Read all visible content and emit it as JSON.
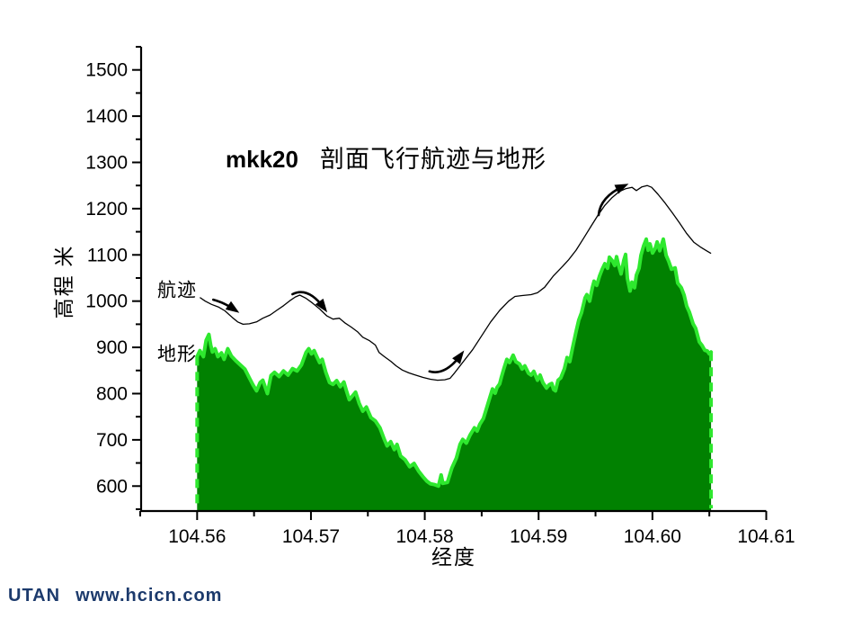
{
  "title": {
    "prefix": "mkk20",
    "main": "剖面飞行航迹与地形"
  },
  "footer": {
    "brand": "UTAN",
    "url": "www.hcicn.com"
  },
  "colors": {
    "terrain_fill": "#018101",
    "terrain_edge": "#2ee82e",
    "trajectory": "#000000",
    "axis": "#000000",
    "text": "#000000",
    "watermark": "#1c3a6c",
    "background": "#ffffff"
  },
  "chart_data": {
    "type": "area",
    "title": "mkk20 剖面飞行航迹与地形",
    "xlabel": "经度",
    "ylabel": "高程 米",
    "xlim": [
      104.555,
      104.61
    ],
    "ylim": [
      548,
      1550
    ],
    "grid": false,
    "x_ticks": [
      104.56,
      104.57,
      104.58,
      104.59,
      104.6,
      104.61
    ],
    "x_tick_labels": [
      "104.56",
      "104.57",
      "104.58",
      "104.59",
      "104.60",
      "104.61"
    ],
    "x_minor_ticks": [
      104.555,
      104.565,
      104.575,
      104.585,
      104.595,
      104.605
    ],
    "y_ticks": [
      600,
      700,
      800,
      900,
      1000,
      1100,
      1200,
      1300,
      1400,
      1500
    ],
    "y_minor_ticks": [
      550,
      650,
      750,
      850,
      950,
      1050,
      1150,
      1250,
      1350,
      1450,
      1550
    ],
    "annotations": [
      {
        "id": "trajectory-label",
        "text": "航迹",
        "x": 104.5565,
        "y": 1024
      },
      {
        "id": "terrain-label",
        "text": "地形",
        "x": 104.5565,
        "y": 886
      }
    ],
    "series": [
      {
        "name": "地形",
        "type": "area",
        "points": [
          [
            104.56,
            880
          ],
          [
            104.56024,
            893
          ],
          [
            104.56055,
            880
          ],
          [
            104.56079,
            915
          ],
          [
            104.56103,
            928
          ],
          [
            104.56119,
            905
          ],
          [
            104.56134,
            890
          ],
          [
            104.56158,
            897
          ],
          [
            104.56182,
            880
          ],
          [
            104.56214,
            888
          ],
          [
            104.56237,
            874
          ],
          [
            104.56269,
            897
          ],
          [
            104.56301,
            881
          ],
          [
            104.5634,
            871
          ],
          [
            104.56388,
            860
          ],
          [
            104.56419,
            853
          ],
          [
            104.56459,
            834
          ],
          [
            104.5649,
            819
          ],
          [
            104.56522,
            806
          ],
          [
            104.56554,
            824
          ],
          [
            104.56577,
            829
          ],
          [
            104.56601,
            812
          ],
          [
            104.56617,
            800
          ],
          [
            104.56649,
            839
          ],
          [
            104.5668,
            846
          ],
          [
            104.5672,
            837
          ],
          [
            104.56759,
            849
          ],
          [
            104.56799,
            840
          ],
          [
            104.56838,
            854
          ],
          [
            104.56878,
            849
          ],
          [
            104.56917,
            862
          ],
          [
            104.56957,
            889
          ],
          [
            104.56981,
            897
          ],
          [
            104.57004,
            886
          ],
          [
            104.57028,
            893
          ],
          [
            104.57052,
            880
          ],
          [
            104.57076,
            867
          ],
          [
            104.57099,
            874
          ],
          [
            104.57131,
            846
          ],
          [
            104.57163,
            824
          ],
          [
            104.57194,
            820
          ],
          [
            104.57226,
            828
          ],
          [
            104.57258,
            815
          ],
          [
            104.57289,
            825
          ],
          [
            104.57313,
            805
          ],
          [
            104.57337,
            787
          ],
          [
            104.57368,
            796
          ],
          [
            104.57392,
            803
          ],
          [
            104.57424,
            779
          ],
          [
            104.57455,
            762
          ],
          [
            104.57487,
            771
          ],
          [
            104.57527,
            748
          ],
          [
            104.57566,
            741
          ],
          [
            104.57606,
            726
          ],
          [
            104.57645,
            701
          ],
          [
            104.57669,
            687
          ],
          [
            104.57701,
            696
          ],
          [
            104.57732,
            679
          ],
          [
            104.57756,
            690
          ],
          [
            104.57788,
            665
          ],
          [
            104.57827,
            657
          ],
          [
            104.57867,
            642
          ],
          [
            104.57906,
            649
          ],
          [
            104.57946,
            632
          ],
          [
            104.57985,
            620
          ],
          [
            104.58017,
            611
          ],
          [
            104.58049,
            605
          ],
          [
            104.58088,
            603
          ],
          [
            104.5812,
            600
          ],
          [
            104.58144,
            624
          ],
          [
            104.58159,
            606
          ],
          [
            104.58199,
            608
          ],
          [
            104.58238,
            639
          ],
          [
            104.58278,
            661
          ],
          [
            104.5831,
            690
          ],
          [
            104.58333,
            701
          ],
          [
            104.58365,
            693
          ],
          [
            104.58397,
            710
          ],
          [
            104.58436,
            726
          ],
          [
            104.5846,
            719
          ],
          [
            104.58484,
            734
          ],
          [
            104.58515,
            746
          ],
          [
            104.58539,
            765
          ],
          [
            104.58571,
            791
          ],
          [
            104.58595,
            810
          ],
          [
            104.58618,
            801
          ],
          [
            104.58634,
            813
          ],
          [
            104.58658,
            821
          ],
          [
            104.58674,
            836
          ],
          [
            104.58697,
            856
          ],
          [
            104.58721,
            874
          ],
          [
            104.58745,
            867
          ],
          [
            104.58776,
            883
          ],
          [
            104.588,
            869
          ],
          [
            104.58832,
            864
          ],
          [
            104.58855,
            853
          ],
          [
            104.58879,
            860
          ],
          [
            104.58911,
            844
          ],
          [
            104.58934,
            840
          ],
          [
            104.58958,
            848
          ],
          [
            104.5899,
            829
          ],
          [
            104.59013,
            840
          ],
          [
            104.59037,
            824
          ],
          [
            104.59069,
            812
          ],
          [
            104.59092,
            819
          ],
          [
            104.59116,
            822
          ],
          [
            104.59132,
            809
          ],
          [
            104.59148,
            806
          ],
          [
            104.59171,
            829
          ],
          [
            104.59195,
            834
          ],
          [
            104.59227,
            854
          ],
          [
            104.5925,
            878
          ],
          [
            104.59274,
            869
          ],
          [
            104.59298,
            899
          ],
          [
            104.59329,
            934
          ],
          [
            104.59353,
            959
          ],
          [
            104.59377,
            975
          ],
          [
            104.59408,
            1007
          ],
          [
            104.59424,
            1014
          ],
          [
            104.59448,
            1000
          ],
          [
            104.59472,
            1029
          ],
          [
            104.59487,
            1043
          ],
          [
            104.59511,
            1034
          ],
          [
            104.59535,
            1054
          ],
          [
            104.59559,
            1069
          ],
          [
            104.59582,
            1081
          ],
          [
            104.59606,
            1071
          ],
          [
            104.59622,
            1095
          ],
          [
            104.59646,
            1088
          ],
          [
            104.59669,
            1077
          ],
          [
            104.59685,
            1096
          ],
          [
            104.59701,
            1079
          ],
          [
            104.59725,
            1059
          ],
          [
            104.59748,
            1088
          ],
          [
            104.59764,
            1101
          ],
          [
            104.5978,
            1049
          ],
          [
            104.59804,
            1022
          ],
          [
            104.5982,
            1041
          ],
          [
            104.59843,
            1029
          ],
          [
            104.59859,
            1056
          ],
          [
            104.59883,
            1071
          ],
          [
            104.59899,
            1099
          ],
          [
            104.59922,
            1119
          ],
          [
            104.59946,
            1134
          ],
          [
            104.59962,
            1110
          ],
          [
            104.59978,
            1124
          ],
          [
            104.60001,
            1104
          ],
          [
            104.60025,
            1114
          ],
          [
            104.60041,
            1128
          ],
          [
            104.60064,
            1109
          ],
          [
            104.60096,
            1134
          ],
          [
            104.6012,
            1099
          ],
          [
            104.60143,
            1086
          ],
          [
            104.60167,
            1069
          ],
          [
            104.60199,
            1072
          ],
          [
            104.60222,
            1039
          ],
          [
            104.60254,
            1029
          ],
          [
            104.60278,
            1013
          ],
          [
            104.60301,
            989
          ],
          [
            104.60325,
            976
          ],
          [
            104.60357,
            951
          ],
          [
            104.6038,
            941
          ],
          [
            104.60412,
            912
          ],
          [
            104.60436,
            904
          ],
          [
            104.60459,
            894
          ],
          [
            104.60483,
            892
          ],
          [
            104.60499,
            886
          ],
          [
            104.60515,
            890
          ]
        ]
      },
      {
        "name": "航迹",
        "type": "line",
        "points": [
          [
            104.56024,
            1008
          ],
          [
            104.56071,
            1000
          ],
          [
            104.56126,
            993
          ],
          [
            104.5619,
            987
          ],
          [
            104.56245,
            979
          ],
          [
            104.56308,
            965
          ],
          [
            104.56356,
            955
          ],
          [
            104.56403,
            950
          ],
          [
            104.56459,
            951
          ],
          [
            104.56522,
            955
          ],
          [
            104.56577,
            963
          ],
          [
            104.56641,
            970
          ],
          [
            104.56704,
            981
          ],
          [
            104.56759,
            990
          ],
          [
            104.56815,
            1001
          ],
          [
            104.56862,
            1009
          ],
          [
            104.56902,
            1013
          ],
          [
            104.56957,
            1006
          ],
          [
            104.57012,
            996
          ],
          [
            104.57076,
            983
          ],
          [
            104.57139,
            968
          ],
          [
            104.57194,
            961
          ],
          [
            104.5725,
            963
          ],
          [
            104.57297,
            953
          ],
          [
            104.57353,
            944
          ],
          [
            104.57408,
            934
          ],
          [
            104.57455,
            922
          ],
          [
            104.57511,
            915
          ],
          [
            104.57566,
            905
          ],
          [
            104.57598,
            889
          ],
          [
            104.57645,
            880
          ],
          [
            104.57701,
            870
          ],
          [
            104.57748,
            860
          ],
          [
            104.57803,
            851
          ],
          [
            104.57859,
            845
          ],
          [
            104.57906,
            841
          ],
          [
            104.57985,
            835
          ],
          [
            104.58049,
            831
          ],
          [
            104.58112,
            829
          ],
          [
            104.58175,
            830
          ],
          [
            104.58222,
            833
          ],
          [
            104.58262,
            845
          ],
          [
            104.58341,
            870
          ],
          [
            104.5842,
            895
          ],
          [
            104.585,
            925
          ],
          [
            104.58579,
            955
          ],
          [
            104.58658,
            980
          ],
          [
            104.58737,
            1000
          ],
          [
            104.58792,
            1010
          ],
          [
            104.58855,
            1012
          ],
          [
            104.58934,
            1014
          ],
          [
            104.5899,
            1018
          ],
          [
            104.59053,
            1030
          ],
          [
            104.59132,
            1055
          ],
          [
            104.59211,
            1075
          ],
          [
            104.59266,
            1090
          ],
          [
            104.59329,
            1110
          ],
          [
            104.59393,
            1135
          ],
          [
            104.59456,
            1160
          ],
          [
            104.59519,
            1185
          ],
          [
            104.59582,
            1207
          ],
          [
            104.59646,
            1224
          ],
          [
            104.59709,
            1237
          ],
          [
            104.59764,
            1243
          ],
          [
            104.5982,
            1246
          ],
          [
            104.59859,
            1239
          ],
          [
            104.59907,
            1247
          ],
          [
            104.59954,
            1250
          ],
          [
            104.59993,
            1246
          ],
          [
            104.60049,
            1231
          ],
          [
            104.60112,
            1212
          ],
          [
            104.60175,
            1191
          ],
          [
            104.60238,
            1169
          ],
          [
            104.60301,
            1146
          ],
          [
            104.60365,
            1127
          ],
          [
            104.60428,
            1116
          ],
          [
            104.60475,
            1109
          ],
          [
            104.60515,
            1103
          ]
        ]
      }
    ],
    "arrows": [
      {
        "from": [
          104.56142,
          1003
        ],
        "ctrl": [
          104.56237,
          997
        ],
        "to": [
          104.56332,
          981
        ]
      },
      {
        "from": [
          104.56838,
          1015
        ],
        "ctrl": [
          104.56975,
          1032
        ],
        "to": [
          104.57115,
          985
        ]
      },
      {
        "from": [
          104.58041,
          848
        ],
        "ctrl": [
          104.5818,
          838
        ],
        "to": [
          104.58318,
          884
        ]
      },
      {
        "from": [
          104.59527,
          1186
        ],
        "ctrl": [
          104.5954,
          1225
        ],
        "to": [
          104.59748,
          1249
        ]
      }
    ]
  }
}
